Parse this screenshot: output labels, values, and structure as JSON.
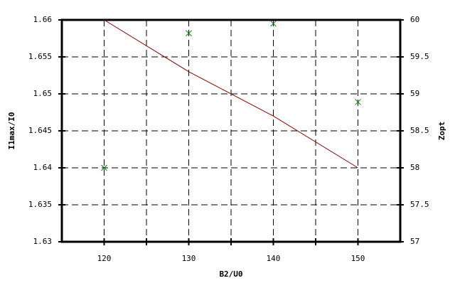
{
  "chart_data": {
    "type": "line-scatter",
    "x_label": "B2/U0",
    "y_label": "I1max/I0",
    "y2_label": "Zopt",
    "xlim": [
      115,
      155
    ],
    "xticks": [
      120,
      130,
      140,
      150
    ],
    "xminor_ticks": [
      125,
      135,
      145
    ],
    "ylim": [
      1.63,
      1.66
    ],
    "yticks": [
      1.63,
      1.635,
      1.64,
      1.645,
      1.65,
      1.655,
      1.66
    ],
    "y2lim": [
      57,
      60
    ],
    "y2ticks": [
      57,
      57.5,
      58,
      58.5,
      59,
      59.5,
      60
    ],
    "grid": true,
    "series": [
      {
        "kind": "line",
        "color": "#8b0000",
        "x": [
          120,
          130,
          140,
          150
        ],
        "values": [
          1.66,
          1.653,
          1.647,
          1.64
        ]
      },
      {
        "kind": "scatter",
        "axis": "y2",
        "color": "#008000",
        "x": [
          120,
          130,
          140,
          150
        ],
        "values": [
          58.0,
          59.82,
          59.95,
          58.89
        ]
      }
    ]
  }
}
